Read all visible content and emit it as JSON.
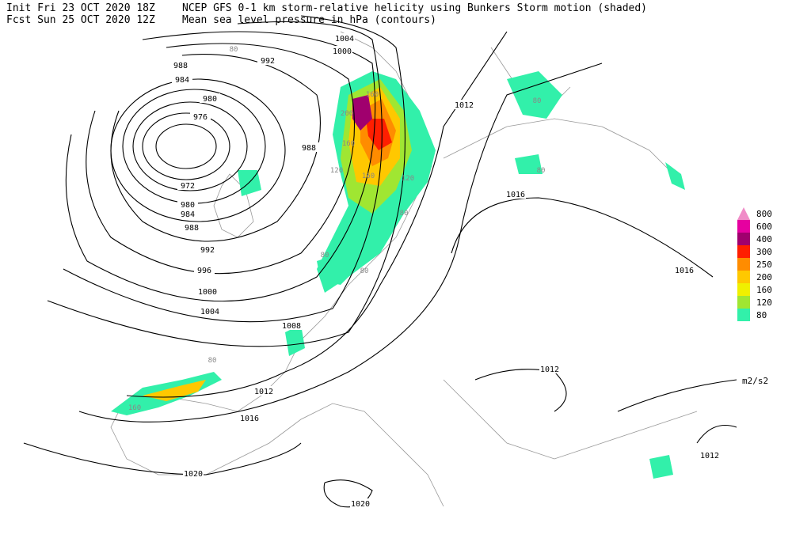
{
  "header": {
    "init": "Init  Fri 23 OCT 2020 18Z",
    "title": "NCEP GFS 0-1 km storm-relative helicity using Bunkers Storm motion (shaded)",
    "forecast": "Fcst Sun 25 OCT 2020 12Z",
    "subtitle": "Mean sea level pressure in hPa (contours)"
  },
  "legend": {
    "levels": [
      {
        "value": 800,
        "color": "#f08cc8"
      },
      {
        "value": 600,
        "color": "#e600a0"
      },
      {
        "value": 400,
        "color": "#a0006e"
      },
      {
        "value": 300,
        "color": "#ff1e00"
      },
      {
        "value": 250,
        "color": "#ff8c00"
      },
      {
        "value": 200,
        "color": "#ffc800"
      },
      {
        "value": 160,
        "color": "#f0f000"
      },
      {
        "value": 120,
        "color": "#a0e632"
      },
      {
        "value": 80,
        "color": "#32f0aa"
      }
    ],
    "unit": "m2/s2"
  },
  "contour_labels": [
    1004,
    1000,
    992,
    988,
    984,
    980,
    976,
    972,
    980,
    984,
    988,
    992,
    996,
    1000,
    1004,
    1008,
    1012,
    1016,
    1020,
    1020,
    1012,
    1016,
    1016,
    1012,
    1012,
    988
  ],
  "shading_labels": [
    160,
    80,
    80,
    160,
    200,
    160,
    120,
    80,
    80,
    80,
    120,
    160,
    80,
    80
  ]
}
